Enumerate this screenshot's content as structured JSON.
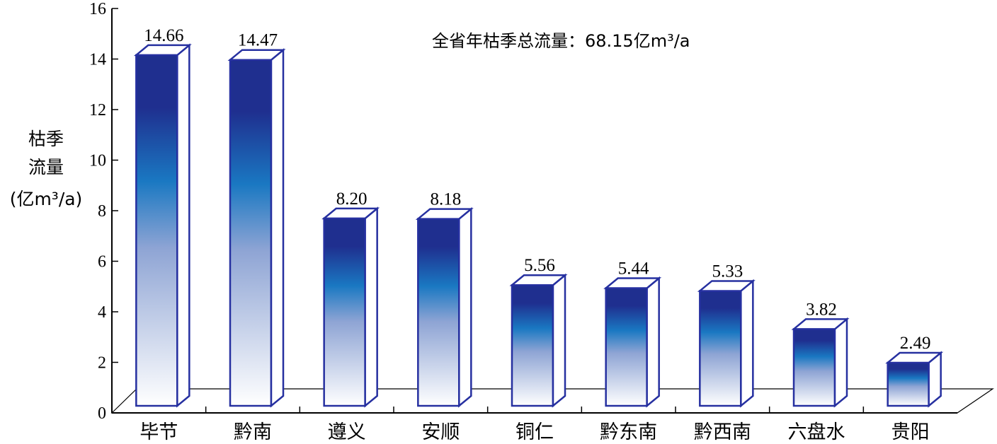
{
  "chart_data": {
    "type": "bar",
    "categories": [
      "毕节",
      "黔南",
      "遵义",
      "安顺",
      "铜仁",
      "黔东南",
      "黔西南",
      "六盘水",
      "贵阳"
    ],
    "values": [
      14.66,
      14.47,
      8.2,
      8.18,
      5.56,
      5.44,
      5.33,
      3.82,
      2.49
    ],
    "value_labels": [
      "14.66",
      "14.47",
      "8.20",
      "8.18",
      "5.56",
      "5.44",
      "5.33",
      "3.82",
      "2.49"
    ],
    "ylabel_lines": [
      "枯季",
      "流量",
      "(亿m³/a)"
    ],
    "y_ticks": [
      "0",
      "2",
      "4",
      "6",
      "8",
      "10",
      "12",
      "14",
      "16"
    ],
    "ylim": [
      0,
      16
    ],
    "annotation": "全省年枯季总流量：68.15亿m³/a",
    "colors": {
      "bar_top": "#1f2f8f",
      "bar_mid": "#1a78c2",
      "bar_bottom": "#ffffff",
      "outline": "#2630a0"
    }
  }
}
